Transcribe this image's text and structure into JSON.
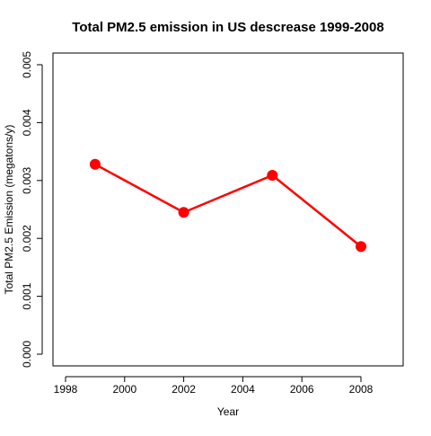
{
  "chart_data": {
    "type": "line",
    "title": "Total PM2.5 emission in US descrease 1999-2008",
    "xlabel": "Year",
    "ylabel": "Total PM2.5 Emission (megatons/y)",
    "x": [
      1999,
      2002,
      2005,
      2008
    ],
    "series": [
      {
        "values": [
          0.00328,
          0.00245,
          0.00309,
          0.00186
        ]
      }
    ],
    "xlim": [
      1998,
      2009.5
    ],
    "ylim": [
      0,
      0.0052
    ],
    "xticks": [
      1998,
      2000,
      2002,
      2004,
      2006,
      2008
    ],
    "xtick_labels": [
      "1998",
      "2000",
      "2002",
      "2004",
      "2006",
      "2008"
    ],
    "yticks": [
      0,
      0.001,
      0.002,
      0.003,
      0.004,
      0.005
    ],
    "ytick_labels": [
      "0.000",
      "0.001",
      "0.002",
      "0.003",
      "0.004",
      "0.005"
    ],
    "line_color": "#ff0000",
    "marker_color": "#ff0000",
    "grid": false,
    "legend": "none"
  }
}
